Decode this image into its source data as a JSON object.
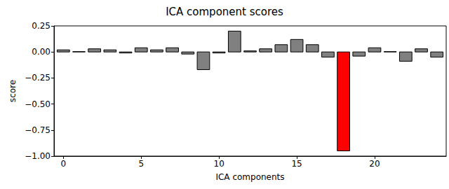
{
  "chart_data": {
    "type": "bar",
    "title": "ICA component scores",
    "x_label": "ICA components",
    "y_label": "score",
    "x": [
      0,
      1,
      2,
      3,
      4,
      5,
      6,
      7,
      8,
      9,
      10,
      11,
      12,
      13,
      14,
      15,
      16,
      17,
      18,
      19,
      20,
      21,
      22,
      23,
      24
    ],
    "values": [
      0.02,
      0.003,
      0.03,
      0.02,
      -0.01,
      0.04,
      0.02,
      0.04,
      -0.02,
      -0.17,
      -0.01,
      0.2,
      0.01,
      0.03,
      0.07,
      0.12,
      0.07,
      -0.05,
      -0.95,
      -0.04,
      0.04,
      0.003,
      -0.09,
      0.03,
      -0.05
    ],
    "colors": [
      "#808080",
      "#808080",
      "#808080",
      "#808080",
      "#808080",
      "#808080",
      "#808080",
      "#808080",
      "#808080",
      "#808080",
      "#808080",
      "#808080",
      "#808080",
      "#808080",
      "#808080",
      "#808080",
      "#808080",
      "#808080",
      "#ff0000",
      "#808080",
      "#808080",
      "#808080",
      "#808080",
      "#808080",
      "#808080"
    ],
    "xlim": [
      -0.6,
      24.6
    ],
    "xticks": [
      0,
      5,
      10,
      15,
      20
    ],
    "ylim": [
      -1.0,
      0.25
    ],
    "yticks": [
      {
        "value": -1.0,
        "label": "−1.00"
      },
      {
        "value": -0.75,
        "label": "−0.75"
      },
      {
        "value": -0.5,
        "label": "−0.50"
      },
      {
        "value": -0.25,
        "label": "−0.25"
      },
      {
        "value": 0,
        "label": "0.00"
      },
      {
        "value": 0.25,
        "label": "0.25"
      }
    ],
    "grid": false
  }
}
